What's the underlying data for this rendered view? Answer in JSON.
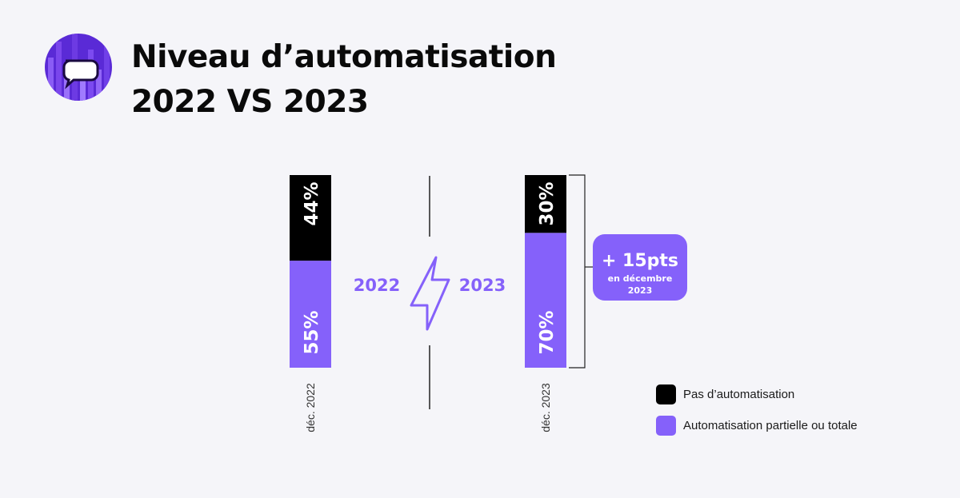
{
  "header": {
    "title_line1": "Niveau d’automatisation",
    "title_line2": "2022 VS 2023"
  },
  "colors": {
    "none": "#000000",
    "partial": "#8561fa",
    "text_accent": "#8561fa",
    "background": "#f5f5f9"
  },
  "chart_data": {
    "type": "bar",
    "stacked": true,
    "orientation": "vertical",
    "categories": [
      "déc. 2022",
      "déc. 2023"
    ],
    "series": [
      {
        "name": "Automatisation partielle ou totale",
        "values": [
          55,
          70
        ],
        "labels": [
          "55%",
          "70%"
        ]
      },
      {
        "name": "Pas d’automatisation",
        "values": [
          44,
          30
        ],
        "labels": [
          "44%",
          "30%"
        ]
      }
    ],
    "ylim": [
      0,
      100
    ],
    "grid": false,
    "legend_position": "bottom-right",
    "annotation": {
      "line1": "+ 15pts",
      "line2": "en décembre",
      "line3": "2023"
    },
    "year_labels": [
      "2022",
      "2023"
    ]
  },
  "legend": {
    "items": [
      {
        "label": "Pas d’automatisation",
        "color": "#000000"
      },
      {
        "label": "Automatisation partielle ou totale",
        "color": "#8561fa"
      }
    ]
  },
  "icons": {
    "logo": "chat-bubble-icon",
    "divider": "lightning-icon"
  }
}
